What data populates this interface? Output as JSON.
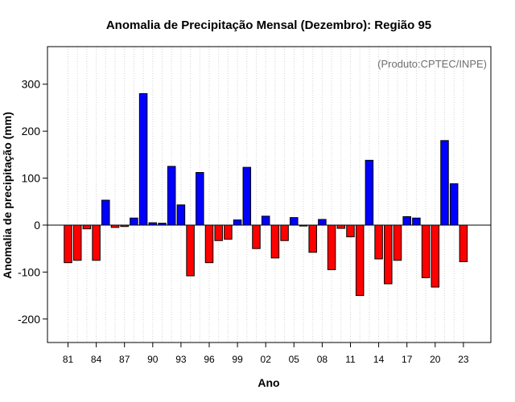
{
  "chart_data": {
    "type": "bar",
    "title": "Anomalia de Precipitação Mensal (Dezembro): Região 95",
    "xlabel": "Ano",
    "ylabel": "Anomalia de precipitação (mm)",
    "credit": "(Produto:CPTEC/INPE)",
    "ylim": [
      -250,
      380
    ],
    "yticks": [
      -200,
      -100,
      0,
      100,
      200,
      300
    ],
    "xtick_labels": [
      "81",
      "84",
      "87",
      "90",
      "93",
      "96",
      "99",
      "02",
      "05",
      "08",
      "11",
      "14",
      "17",
      "20",
      "23"
    ],
    "grid": "vertical dotted",
    "categories": [
      "1981",
      "1982",
      "1983",
      "1984",
      "1985",
      "1986",
      "1987",
      "1988",
      "1989",
      "1990",
      "1991",
      "1992",
      "1993",
      "1994",
      "1995",
      "1996",
      "1997",
      "1998",
      "1999",
      "2000",
      "2001",
      "2002",
      "2003",
      "2004",
      "2005",
      "2006",
      "2007",
      "2008",
      "2009",
      "2010",
      "2011",
      "2012",
      "2013",
      "2014",
      "2015",
      "2016",
      "2017",
      "2018",
      "2019",
      "2020",
      "2021",
      "2022",
      "2023"
    ],
    "values": [
      -80,
      -75,
      -8,
      -75,
      53,
      -5,
      -3,
      15,
      280,
      5,
      4,
      125,
      43,
      -108,
      112,
      -80,
      -33,
      -30,
      11,
      123,
      -50,
      19,
      -70,
      -33,
      16,
      -2,
      -58,
      12,
      -95,
      -7,
      -25,
      -150,
      138,
      -72,
      -125,
      -75,
      18,
      15,
      -112,
      -132,
      180,
      88,
      -78
    ],
    "colors": {
      "positive": "#0000ff",
      "negative": "#ff0000",
      "bar_stroke": "#000000",
      "grid": "#d3d3d3"
    }
  }
}
